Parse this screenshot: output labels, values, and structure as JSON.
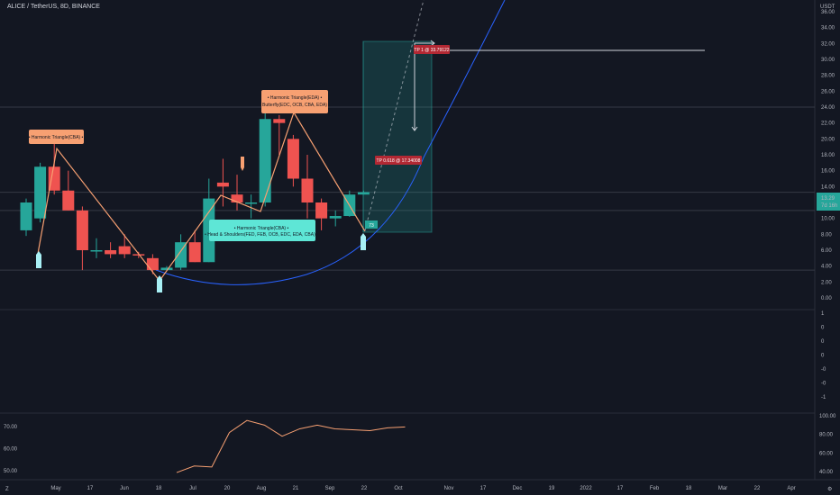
{
  "header": {
    "title": "ALICE / TetherUS, 8D, BINANCE"
  },
  "price_axis": {
    "currency": "USDT",
    "ticks": [
      "36.00",
      "34.00",
      "32.00",
      "30.00",
      "28.00",
      "26.00",
      "24.00",
      "22.00",
      "20.00",
      "18.00",
      "16.00",
      "14.00",
      "12.00",
      "10.00",
      "8.00",
      "6.00",
      "4.00",
      "2.00",
      "0.00"
    ],
    "current_price": "13.29",
    "countdown": "7d 16h"
  },
  "lower_pane": {
    "ticks": [
      "1",
      "0",
      "0",
      "0",
      "-0",
      "-0",
      "-1"
    ]
  },
  "rsi_pane": {
    "left_ticks": [
      "70.00",
      "60.00",
      "50.00"
    ],
    "right_ticks": [
      "100.00",
      "80.00",
      "60.00",
      "40.00"
    ]
  },
  "time_axis": {
    "labels": [
      "May",
      "17",
      "Jun",
      "18",
      "Jul",
      "20",
      "Aug",
      "21",
      "Sep",
      "22",
      "Oct",
      "Nov",
      "17",
      "Dec",
      "19",
      "2022",
      "17",
      "Feb",
      "18",
      "Mar",
      "22",
      "Apr"
    ]
  },
  "annotations": {
    "pattern_1": "• Harmonic Triangle(CBA) •",
    "pattern_2a": "• Harmonic Triangle(CBA) •",
    "pattern_2b": "• Head & Shoulders(FED, FEB, OCB, EDC, EDA, CBA) •",
    "pattern_3a": "• Harmonic Triangle(EDA) •",
    "pattern_3b": "• Butterfly(EDC, OCB, CBA, EDA) •",
    "marker": "73",
    "tp1": "TP 1 @ 33.79122",
    "tp0618": "TP 0.618 @ 17.34008"
  },
  "chart_data": [
    {
      "type": "candlestick",
      "pair": "ALICE / TetherUS",
      "interval": "8D",
      "exchange": "BINANCE",
      "x": [
        "May",
        "17",
        "Jun",
        "18",
        "Jul",
        "20",
        "Aug",
        "21",
        "Sep",
        "22",
        "Oct"
      ],
      "candles": [
        {
          "o": 8.5,
          "h": 12.5,
          "l": 7.8,
          "c": 12.0
        },
        {
          "o": 10.0,
          "h": 17.0,
          "l": 9.5,
          "c": 16.5
        },
        {
          "o": 16.5,
          "h": 19.5,
          "l": 13.0,
          "c": 13.5
        },
        {
          "o": 13.5,
          "h": 16.0,
          "l": 11.0,
          "c": 11.0
        },
        {
          "o": 11.0,
          "h": 11.5,
          "l": 3.5,
          "c": 6.0
        },
        {
          "o": 6.0,
          "h": 7.5,
          "l": 5.0,
          "c": 6.0
        },
        {
          "o": 6.0,
          "h": 7.0,
          "l": 5.0,
          "c": 5.5
        },
        {
          "o": 6.5,
          "h": 8.0,
          "l": 5.0,
          "c": 5.5
        },
        {
          "o": 5.5,
          "h": 5.8,
          "l": 5.0,
          "c": 5.4
        },
        {
          "o": 5.0,
          "h": 5.5,
          "l": 3.0,
          "c": 3.5
        },
        {
          "o": 3.5,
          "h": 4.0,
          "l": 3.5,
          "c": 3.8
        },
        {
          "o": 3.8,
          "h": 8.0,
          "l": 3.5,
          "c": 7.0
        },
        {
          "o": 7.0,
          "h": 8.5,
          "l": 4.5,
          "c": 4.5
        },
        {
          "o": 4.5,
          "h": 15.0,
          "l": 4.5,
          "c": 12.5
        },
        {
          "o": 14.5,
          "h": 17.5,
          "l": 11.5,
          "c": 14.0
        },
        {
          "o": 13.0,
          "h": 15.5,
          "l": 11.0,
          "c": 12.0
        },
        {
          "o": 12.0,
          "h": 13.0,
          "l": 10.0,
          "c": 12.0
        },
        {
          "o": 12.0,
          "h": 24.0,
          "l": 11.5,
          "c": 22.5
        },
        {
          "o": 22.5,
          "h": 23.0,
          "l": 18.0,
          "c": 22.0
        },
        {
          "o": 20.0,
          "h": 20.5,
          "l": 14.0,
          "c": 15.0
        },
        {
          "o": 15.0,
          "h": 18.0,
          "l": 10.0,
          "c": 12.0
        },
        {
          "o": 12.0,
          "h": 12.5,
          "l": 8.5,
          "c": 10.0
        },
        {
          "o": 10.0,
          "h": 11.0,
          "l": 9.0,
          "c": 10.3
        },
        {
          "o": 10.3,
          "h": 13.5,
          "l": 10.2,
          "c": 13.0
        },
        {
          "o": 13.0,
          "h": 13.5,
          "l": 13.0,
          "c": 13.3
        }
      ],
      "levels": [
        24.0,
        13.29,
        11.0,
        3.5,
        32.5
      ]
    },
    {
      "type": "line",
      "name": "RSI",
      "values": [
        39,
        46,
        45,
        82,
        95,
        90,
        78,
        86,
        90,
        86,
        85,
        84,
        87,
        88
      ]
    }
  ],
  "colors": {
    "background": "#131722",
    "up": "#26a69a",
    "down": "#ef5350",
    "pattern_line": "#f7a072",
    "curve": "#2962ff",
    "rsi": "#f7a072",
    "target_box": "#26a69a"
  }
}
